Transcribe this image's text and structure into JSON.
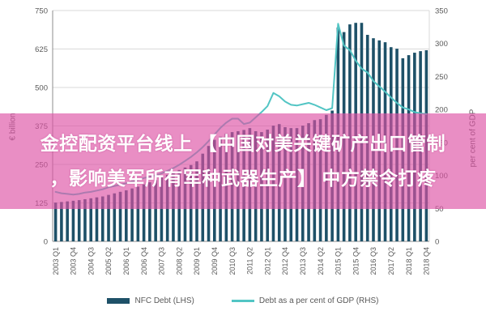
{
  "colors": {
    "bar": "#1e5168",
    "line": "#52c5c4",
    "overlay": "rgba(221,82,164,0.65)",
    "overlay_text": "#ffffff",
    "axis_text": "#595959",
    "grid": "#d9d9d9",
    "axis_line": "#8c8c8c",
    "background": "#ffffff"
  },
  "overlay": {
    "lines": [
      "金控配资平台线上 【中国对美关键矿产出口管制",
      "，影响美军所有军种武器生产】 中方禁令打疼"
    ]
  },
  "chart_data": {
    "type": "bar",
    "subtype": "combo-bar-line-dual-axis",
    "grid": true,
    "legend_position": "bottom",
    "x_tick_every": 3,
    "categories": [
      "2003 Q1",
      "2003 Q2",
      "2003 Q3",
      "2003 Q4",
      "2004 Q1",
      "2004 Q2",
      "2004 Q3",
      "2004 Q4",
      "2005 Q1",
      "2005 Q2",
      "2005 Q3",
      "2005 Q4",
      "2006 Q1",
      "2006 Q2",
      "2006 Q3",
      "2006 Q4",
      "2007 Q1",
      "2007 Q2",
      "2007 Q3",
      "2007 Q4",
      "2008 Q1",
      "2008 Q2",
      "2008 Q3",
      "2008 Q4",
      "2009 Q1",
      "2009 Q2",
      "2009 Q3",
      "2009 Q4",
      "2010 Q1",
      "2010 Q2",
      "2010 Q3",
      "2010 Q4",
      "2011 Q1",
      "2011 Q2",
      "2011 Q3",
      "2011 Q4",
      "2012 Q1",
      "2012 Q2",
      "2012 Q3",
      "2012 Q4",
      "2013 Q1",
      "2013 Q2",
      "2013 Q3",
      "2013 Q4",
      "2014 Q1",
      "2014 Q2",
      "2014 Q3",
      "2014 Q4",
      "2015 Q1",
      "2015 Q2",
      "2015 Q3",
      "2015 Q4",
      "2016 Q1",
      "2016 Q2",
      "2016 Q3",
      "2016 Q4",
      "2017 Q1",
      "2017 Q2",
      "2017 Q3",
      "2017 Q4",
      "2018 Q1",
      "2018 Q2",
      "2018 Q3",
      "2018 Q4"
    ],
    "series": [
      {
        "name": "NFC Debt (LHS)",
        "type": "bar",
        "axis": "left",
        "values": [
          126,
          128,
          130,
          132,
          134,
          137,
          140,
          143,
          146,
          151,
          156,
          161,
          166,
          172,
          178,
          185,
          192,
          200,
          208,
          216,
          224,
          232,
          240,
          248,
          260,
          285,
          310,
          330,
          340,
          350,
          355,
          358,
          362,
          368,
          358,
          355,
          363,
          376,
          381,
          371,
          368,
          368,
          376,
          384,
          394,
          397,
          411,
          425,
          695,
          680,
          705,
          710,
          710,
          671,
          660,
          653,
          647,
          631,
          626,
          595,
          605,
          613,
          618,
          621
        ]
      },
      {
        "name": "Debt as a per cent of GDP (RHS)",
        "type": "line",
        "axis": "right",
        "values": [
          75,
          73,
          72,
          71,
          72,
          74,
          75,
          77,
          79,
          82,
          84,
          86,
          88,
          91,
          93,
          96,
          98,
          100,
          103,
          107,
          111,
          116,
          122,
          128,
          135,
          143,
          152,
          162,
          172,
          180,
          186,
          186,
          178,
          180,
          188,
          196,
          205,
          225,
          220,
          212,
          207,
          206,
          208,
          210,
          207,
          203,
          199,
          202,
          330,
          297,
          290,
          274,
          262,
          256,
          243,
          235,
          227,
          218,
          210,
          203,
          200,
          196,
          194,
          193
        ]
      }
    ],
    "left_axis": {
      "title": "€ billion",
      "range": [
        0,
        750
      ],
      "ticks": [
        750,
        625,
        500,
        375,
        250,
        125,
        0
      ]
    },
    "right_axis": {
      "title": "per cent of GDP",
      "range": [
        0,
        350
      ],
      "ticks": [
        350,
        300,
        250,
        200,
        150,
        100,
        50,
        0
      ]
    }
  }
}
